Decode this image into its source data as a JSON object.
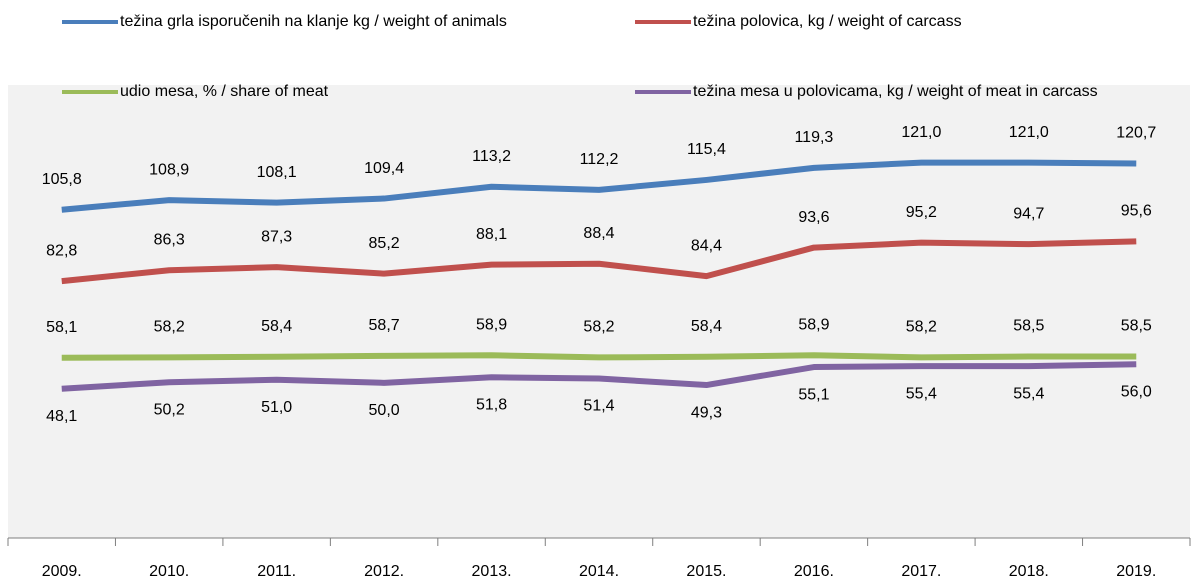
{
  "chart_data": {
    "type": "line",
    "categories": [
      "2009.",
      "2010.",
      "2011.",
      "2012.",
      "2013.",
      "2014.",
      "2015.",
      "2016.",
      "2017.",
      "2018.",
      "2019."
    ],
    "series": [
      {
        "name": "težina grla isporučenih na klanje kg / weight of animals",
        "color": "#4a7ebb",
        "values": [
          105.8,
          108.9,
          108.1,
          109.4,
          113.2,
          112.2,
          115.4,
          119.3,
          121.0,
          121.0,
          120.7
        ],
        "value_labels": [
          "105,8",
          "108,9",
          "108,1",
          "109,4",
          "113,2",
          "112,2",
          "115,4",
          "119,3",
          "121,0",
          "121,0",
          "120,7"
        ]
      },
      {
        "name": "težina polovica, kg / weight of carcass",
        "color": "#c0504d",
        "values": [
          82.8,
          86.3,
          87.3,
          85.2,
          88.1,
          88.4,
          84.4,
          93.6,
          95.2,
          94.7,
          95.6
        ],
        "value_labels": [
          "82,8",
          "86,3",
          "87,3",
          "85,2",
          "88,1",
          "88,4",
          "84,4",
          "93,6",
          "95,2",
          "94,7",
          "95,6"
        ]
      },
      {
        "name": "udio mesa, % / share of meat",
        "color": "#9bbb59",
        "values": [
          58.1,
          58.2,
          58.4,
          58.7,
          58.9,
          58.2,
          58.4,
          58.9,
          58.2,
          58.5,
          58.5
        ],
        "value_labels": [
          "58,1",
          "58,2",
          "58,4",
          "58,7",
          "58,9",
          "58,2",
          "58,4",
          "58,9",
          "58,2",
          "58,5",
          "58,5"
        ]
      },
      {
        "name": "težina mesa u polovicama, kg / weight of meat in carcass",
        "color": "#8064a2",
        "values": [
          48.1,
          50.2,
          51.0,
          50.0,
          51.8,
          51.4,
          49.3,
          55.1,
          55.4,
          55.4,
          56.0
        ],
        "value_labels": [
          "48,1",
          "50,2",
          "51,0",
          "50,0",
          "51,8",
          "51,4",
          "49,3",
          "55,1",
          "55,4",
          "55,4",
          "56,0"
        ]
      }
    ],
    "ylim": [
      0,
      146
    ]
  }
}
